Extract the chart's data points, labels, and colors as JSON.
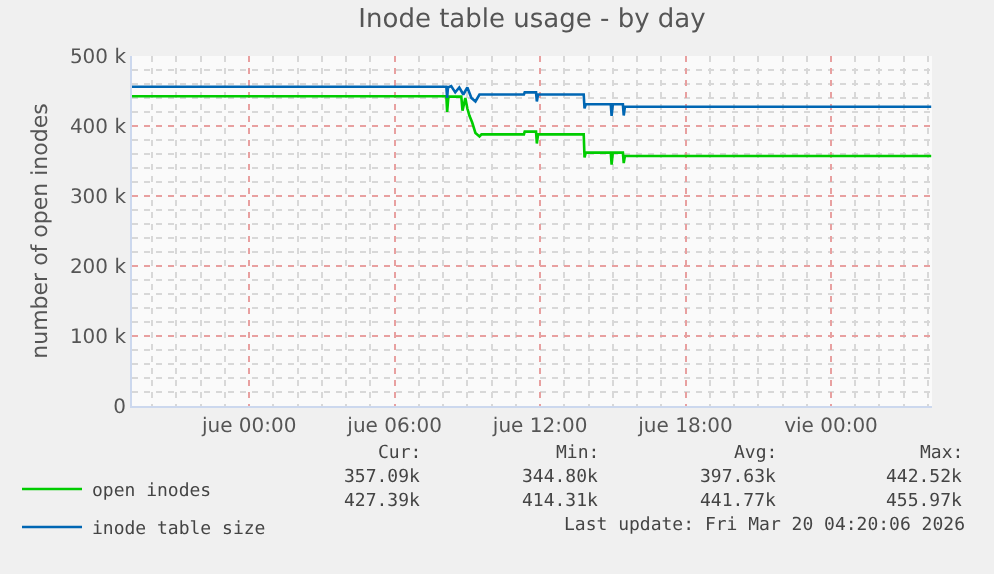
{
  "chart_data": {
    "type": "line",
    "title": "Inode table usage - by day",
    "ylabel": "number of open inodes",
    "xlim": [
      "2026-03-18T19:10",
      "2026-03-20T04:10"
    ],
    "xticks": [
      {
        "value": "2026-03-19T00:00",
        "label": "jue 00:00"
      },
      {
        "value": "2026-03-19T06:00",
        "label": "jue 06:00"
      },
      {
        "value": "2026-03-19T12:00",
        "label": "jue 12:00"
      },
      {
        "value": "2026-03-19T18:00",
        "label": "jue 18:00"
      },
      {
        "value": "2026-03-20T00:00",
        "label": "vie 00:00"
      }
    ],
    "ylim": [
      0,
      500000
    ],
    "yticks": [
      0,
      {
        "value": 100000,
        "label": "100 k"
      },
      {
        "value": 200000,
        "label": "200 k"
      },
      {
        "value": 300000,
        "label": "300 k"
      },
      {
        "value": 400000,
        "label": "400 k"
      },
      {
        "value": 500000,
        "label": "500 k"
      }
    ],
    "grid": true,
    "legend": "bottom left",
    "marker": "none",
    "line_style": "solid",
    "series": [
      {
        "name": "open inodes",
        "color": "#00cc00",
        "x": [
          "2026-03-18T19:10",
          "2026-03-19T08:08",
          "2026-03-19T08:10",
          "2026-03-19T08:13",
          "2026-03-19T08:45",
          "2026-03-19T08:48",
          "2026-03-19T08:55",
          "2026-03-19T09:00",
          "2026-03-19T09:05",
          "2026-03-19T09:12",
          "2026-03-19T09:20",
          "2026-03-19T09:30",
          "2026-03-19T09:35",
          "2026-03-19T11:20",
          "2026-03-19T11:22",
          "2026-03-19T11:50",
          "2026-03-19T11:52",
          "2026-03-19T11:55",
          "2026-03-19T13:48",
          "2026-03-19T13:50",
          "2026-03-19T13:53",
          "2026-03-19T14:55",
          "2026-03-19T14:57",
          "2026-03-19T15:00",
          "2026-03-19T15:25",
          "2026-03-19T15:27",
          "2026-03-19T15:30",
          "2026-03-20T04:08"
        ],
        "values": [
          442520,
          442520,
          420000,
          442000,
          442000,
          422000,
          440000,
          425000,
          415000,
          405000,
          390000,
          385000,
          388000,
          388000,
          392000,
          392000,
          375000,
          388000,
          388000,
          355000,
          362000,
          362000,
          344800,
          362000,
          362000,
          347000,
          357090,
          357090
        ]
      },
      {
        "name": "inode table size",
        "color": "#0066b3",
        "x": [
          "2026-03-18T19:10",
          "2026-03-19T08:08",
          "2026-03-19T08:10",
          "2026-03-19T08:12",
          "2026-03-19T08:20",
          "2026-03-19T08:30",
          "2026-03-19T08:40",
          "2026-03-19T08:50",
          "2026-03-19T09:00",
          "2026-03-19T09:10",
          "2026-03-19T09:20",
          "2026-03-19T09:30",
          "2026-03-19T11:20",
          "2026-03-19T11:22",
          "2026-03-19T11:50",
          "2026-03-19T11:52",
          "2026-03-19T11:55",
          "2026-03-19T13:48",
          "2026-03-19T13:50",
          "2026-03-19T13:53",
          "2026-03-19T14:55",
          "2026-03-19T14:57",
          "2026-03-19T15:00",
          "2026-03-19T15:25",
          "2026-03-19T15:27",
          "2026-03-19T15:30",
          "2026-03-20T04:08"
        ],
        "values": [
          455970,
          455970,
          440000,
          455000,
          457000,
          448000,
          455000,
          445000,
          455000,
          440000,
          435000,
          445000,
          445000,
          448000,
          448000,
          435000,
          445000,
          445000,
          425000,
          431000,
          431000,
          414310,
          431000,
          431000,
          415000,
          427390,
          427390
        ]
      }
    ],
    "annotations": [
      "Cur:",
      "Min:",
      "Avg:",
      "Max:",
      "357.09k",
      "344.80k",
      "397.63k",
      "442.52k",
      "427.39k",
      "414.31k",
      "441.77k",
      "455.97k",
      "Last update: Fri Mar 20 04:20:06 2026"
    ]
  }
}
